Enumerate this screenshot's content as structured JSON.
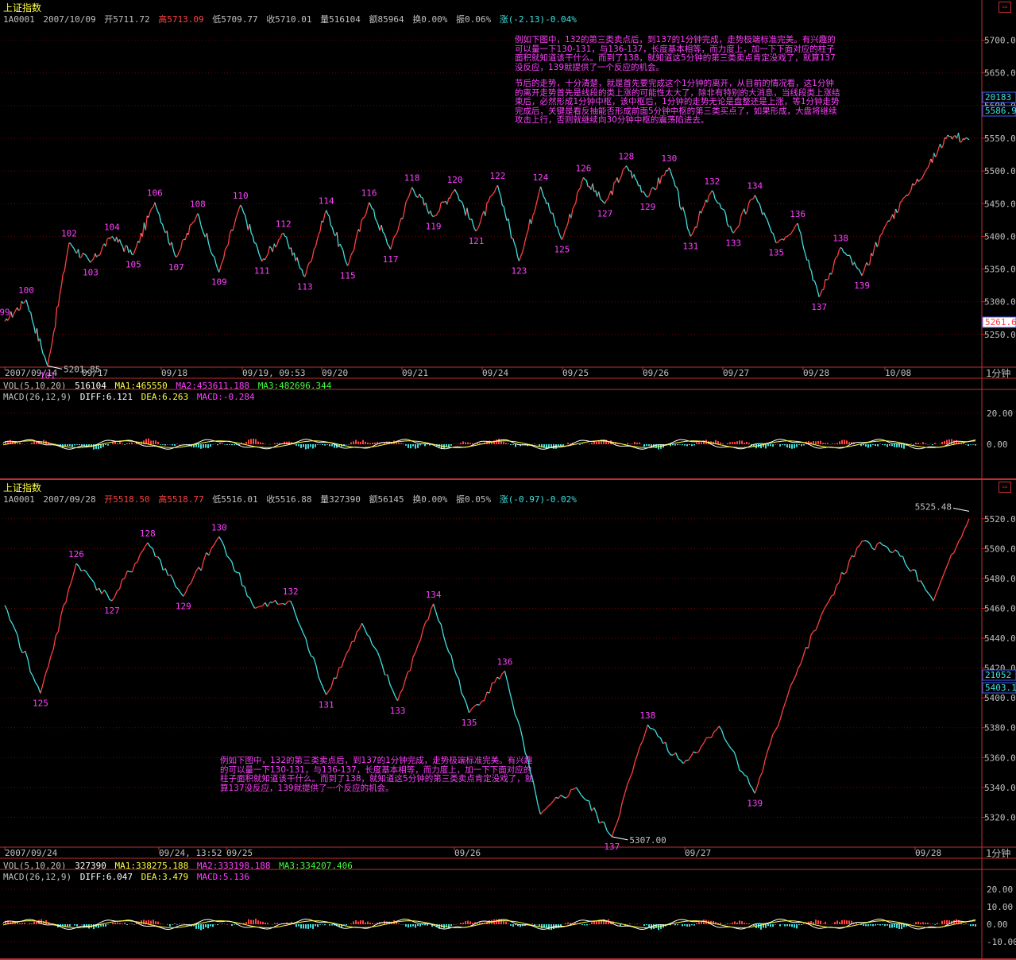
{
  "colors": {
    "up": "#ff4040",
    "down": "#40e0e0",
    "grid": "#7a0000",
    "axis": "#c03030",
    "label": "#ff40ff",
    "ma": "#ffff40",
    "ma3": "#40ff40",
    "text": "#c0c0c0"
  },
  "top": {
    "title": "上证指数",
    "info": {
      "code": "1A0001",
      "date": "2007/10/09",
      "open": "开5711.72",
      "high": "高5713.09",
      "low": "低5709.77",
      "close": "收5710.01",
      "vol": "量516104",
      "amount": "额85964",
      "turnover": "换0.00%",
      "amplitude": "振0.06%",
      "change": "涨(-2.13)-0.04%"
    },
    "yticks": [
      "5700.0",
      "5650.0",
      "5600.0",
      "5550.0",
      "5500.0",
      "5450.0",
      "5400.0",
      "5350.0",
      "5300.0",
      "5250.0"
    ],
    "yflags": [
      "20183",
      "5586.93",
      "5261.6"
    ],
    "xlabels": [
      "2007/09/14",
      "09/17",
      "09/18",
      "09/19, 09:53",
      "09/20",
      "09/21",
      "09/24",
      "09/25",
      "09/26",
      "09/27",
      "09/28",
      "10/08"
    ],
    "period": "1分钟",
    "low_note": "5201.85",
    "vol_info": {
      "label": "VOL(5,10,20)",
      "v": "516104",
      "ma1": "MA1:465550",
      "ma2": "MA2:453611.188",
      "ma3": "MA3:482696.344"
    },
    "macd_info": {
      "label": "MACD(26,12,9)",
      "diff": "DIFF:6.121",
      "dea": "DEA:6.263",
      "macd": "MACD:-0.284"
    },
    "macd_ticks": [
      "20.00",
      "0.00"
    ],
    "note1": "例如下图中，132的第三类卖点后，到137的1分钟完成，走势极端标准完美。有兴趣的可以量一下130-131，与136-137，长度基本相等，而力度上，加一下下面对应的柱子面积就知道该干什么。而到了138，就知道这5分钟的第三类卖点肯定没戏了，就算137没反应，139就提供了一个反应的机会。",
    "note2": "节后的走势，十分清楚，就是首先要完成这个1分钟的离开，从目前的情况看，这1分钟的离开走势首先是线段的类上涨的可能性太大了，除非有特别的大消息，当线段类上涨结束后，必然形成1分钟中枢，该中枢后，1分钟的走势无论是盘整还是上涨，等1分钟走势完成后，关键是看反抽能否形成前面5分钟中枢的第三类买点了，如果形成，大盘将继续攻击上行，否则就继续向30分钟中枢的震荡陷进去。"
  },
  "bottom": {
    "title": "上证指数",
    "info": {
      "code": "1A0001",
      "date": "2007/09/28",
      "open": "开5518.50",
      "high": "高5518.77",
      "low": "低5516.01",
      "close": "收5516.88",
      "vol": "量327390",
      "amount": "额56145",
      "turnover": "换0.00%",
      "amplitude": "振0.05%",
      "change": "涨(-0.97)-0.02%"
    },
    "yticks": [
      "5520.0",
      "5500.0",
      "5480.0",
      "5460.0",
      "5440.0",
      "5420.0",
      "5400.0",
      "5380.0",
      "5360.0",
      "5340.0",
      "5320.0"
    ],
    "yflags": [
      "21052",
      "5403.17"
    ],
    "xlabels": [
      "2007/09/24",
      "09/24, 13:52",
      "09/25",
      "09/26",
      "09/27",
      "09/28"
    ],
    "period": "1分钟",
    "high_note": "5525.48",
    "low_note": "5307.00",
    "vol_info": {
      "label": "VOL(5,10,20)",
      "v": "327390",
      "ma1": "MA1:338275.188",
      "ma2": "MA2:333198.188",
      "ma3": "MA3:334207.406"
    },
    "macd_info": {
      "label": "MACD(26,12,9)",
      "diff": "DIFF:6.047",
      "dea": "DEA:3.479",
      "macd": "MACD:5.136"
    },
    "macd_ticks": [
      "20.00",
      "10.00",
      "0.00",
      "-10.00"
    ],
    "note": "例如下图中，132的第三类卖点后，到137的1分钟完成，走势极端标准完美。有兴趣的可以量一下130-131，与136-137，长度基本相等，而力度上，加一下下面对应的柱子面积就知道该干什么。而到了138，就知道这5分钟的第三类卖点肯定没戏了，就算137没反应，139就提供了一个反应的机会。"
  },
  "chart_data": [
    {
      "type": "line",
      "title": "上证指数",
      "ylim": [
        5200,
        5725
      ],
      "xlabels": [
        "2007/09/14",
        "09/17",
        "09/18",
        "09/19",
        "09/20",
        "09/21",
        "09/24",
        "09/25",
        "09/26",
        "09/27",
        "09/28",
        "10/08"
      ],
      "pivots": [
        {
          "label": "99",
          "y": 5270
        },
        {
          "label": "100",
          "y": 5303
        },
        {
          "label": "101",
          "y": 5202
        },
        {
          "label": "102",
          "y": 5390
        },
        {
          "label": "103",
          "y": 5360
        },
        {
          "label": "104",
          "y": 5400
        },
        {
          "label": "105",
          "y": 5372
        },
        {
          "label": "106",
          "y": 5452
        },
        {
          "label": "107",
          "y": 5368
        },
        {
          "label": "108",
          "y": 5435
        },
        {
          "label": "109",
          "y": 5345
        },
        {
          "label": "110",
          "y": 5448
        },
        {
          "label": "111",
          "y": 5362
        },
        {
          "label": "112",
          "y": 5405
        },
        {
          "label": "113",
          "y": 5338
        },
        {
          "label": "114",
          "y": 5440
        },
        {
          "label": "115",
          "y": 5355
        },
        {
          "label": "116",
          "y": 5452
        },
        {
          "label": "117",
          "y": 5380
        },
        {
          "label": "118",
          "y": 5475
        },
        {
          "label": "119",
          "y": 5430
        },
        {
          "label": "120",
          "y": 5472
        },
        {
          "label": "121",
          "y": 5408
        },
        {
          "label": "122",
          "y": 5478
        },
        {
          "label": "123",
          "y": 5362
        },
        {
          "label": "124",
          "y": 5476
        },
        {
          "label": "125",
          "y": 5395
        },
        {
          "label": "126",
          "y": 5490
        },
        {
          "label": "127",
          "y": 5450
        },
        {
          "label": "128",
          "y": 5508
        },
        {
          "label": "129",
          "y": 5460
        },
        {
          "label": "130",
          "y": 5505
        },
        {
          "label": "131",
          "y": 5400
        },
        {
          "label": "132",
          "y": 5470
        },
        {
          "label": "133",
          "y": 5405
        },
        {
          "label": "134",
          "y": 5463
        },
        {
          "label": "135",
          "y": 5390
        },
        {
          "label": "136",
          "y": 5420
        },
        {
          "label": "137",
          "y": 5307
        },
        {
          "label": "138",
          "y": 5383
        },
        {
          "label": "139",
          "y": 5340
        },
        {
          "label": "",
          "y": 5410
        },
        {
          "label": "",
          "y": 5460
        },
        {
          "label": "",
          "y": 5502
        },
        {
          "label": "",
          "y": 5555
        },
        {
          "label": "",
          "y": 5548
        }
      ]
    },
    {
      "type": "line",
      "title": "上证指数",
      "ylim": [
        5300,
        5530
      ],
      "xlabels": [
        "2007/09/24",
        "09/25",
        "09/26",
        "09/27",
        "09/28"
      ],
      "pivots": [
        {
          "label": "",
          "y": 5462
        },
        {
          "label": "125",
          "y": 5403
        },
        {
          "label": "126",
          "y": 5490
        },
        {
          "label": "127",
          "y": 5465
        },
        {
          "label": "128",
          "y": 5504
        },
        {
          "label": "129",
          "y": 5468
        },
        {
          "label": "130",
          "y": 5508
        },
        {
          "label": "",
          "y": 5460
        },
        {
          "label": "132",
          "y": 5465
        },
        {
          "label": "131",
          "y": 5402
        },
        {
          "label": "",
          "y": 5450
        },
        {
          "label": "133",
          "y": 5398
        },
        {
          "label": "134",
          "y": 5463
        },
        {
          "label": "135",
          "y": 5390
        },
        {
          "label": "136",
          "y": 5418
        },
        {
          "label": "",
          "y": 5322
        },
        {
          "label": "",
          "y": 5340
        },
        {
          "label": "137",
          "y": 5307
        },
        {
          "label": "138",
          "y": 5382
        },
        {
          "label": "",
          "y": 5356
        },
        {
          "label": "",
          "y": 5381
        },
        {
          "label": "139",
          "y": 5336
        },
        {
          "label": "",
          "y": 5408
        },
        {
          "label": "",
          "y": 5462
        },
        {
          "label": "",
          "y": 5505
        },
        {
          "label": "",
          "y": 5498
        },
        {
          "label": "",
          "y": 5465
        },
        {
          "label": "",
          "y": 5520
        }
      ]
    }
  ]
}
